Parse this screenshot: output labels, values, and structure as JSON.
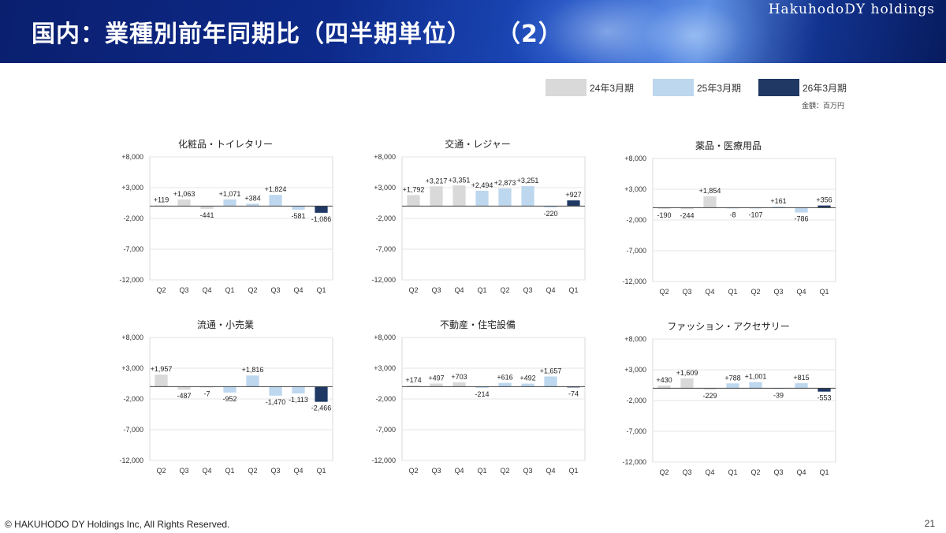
{
  "header": {
    "title": "国内：業種別前年同期比（四半期単位）　　（2）",
    "company": "HakuhodoDY holdings"
  },
  "legend": [
    {
      "label": "24年3月期",
      "color": "#d9d9d9"
    },
    {
      "label": "25年3月期",
      "color": "#bdd7ee"
    },
    {
      "label": "26年3月期",
      "color": "#1f3864"
    }
  ],
  "unit_note": "金額：百万円",
  "footer": {
    "copyright": "© HAKUHODO DY Holdings  Inc, All  Rights  Reserved.",
    "page_number": "21"
  },
  "chart_data": [
    {
      "type": "bar",
      "title": "化粧品・トイレタリー",
      "categories": [
        "Q2",
        "Q3",
        "Q4",
        "Q1",
        "Q2",
        "Q3",
        "Q4",
        "Q1"
      ],
      "values": [
        119,
        1063,
        -441,
        1071,
        384,
        1824,
        -581,
        -1086
      ],
      "value_labels": [
        "+119",
        "+1,063",
        "-441",
        "+1,071",
        "+384",
        "+1,824",
        "-581",
        "-1,086"
      ],
      "fiscal_year_index": [
        0,
        0,
        0,
        1,
        1,
        1,
        1,
        2
      ],
      "yticks": [
        8000,
        3000,
        -2000,
        -7000,
        -12000
      ],
      "ytick_labels": [
        "+8,000",
        "+3,000",
        "-2,000",
        "-7,000",
        "-12,000"
      ],
      "ylim": [
        -12000,
        8000
      ]
    },
    {
      "type": "bar",
      "title": "交通・レジャー",
      "categories": [
        "Q2",
        "Q3",
        "Q4",
        "Q1",
        "Q2",
        "Q3",
        "Q4",
        "Q1"
      ],
      "values": [
        1792,
        3217,
        3351,
        2494,
        2873,
        3251,
        -220,
        927
      ],
      "value_labels": [
        "+1,792",
        "+3,217",
        "+3,351",
        "+2,494",
        "+2,873",
        "+3,251",
        "-220",
        "+927"
      ],
      "fiscal_year_index": [
        0,
        0,
        0,
        1,
        1,
        1,
        1,
        2
      ],
      "yticks": [
        8000,
        3000,
        -2000,
        -7000,
        -12000
      ],
      "ytick_labels": [
        "+8,000",
        "+3,000",
        "-2,000",
        "-7,000",
        "-12,000"
      ],
      "ylim": [
        -12000,
        8000
      ]
    },
    {
      "type": "bar",
      "title": "薬品・医療用品",
      "categories": [
        "Q2",
        "Q3",
        "Q4",
        "Q1",
        "Q2",
        "Q3",
        "Q4",
        "Q1"
      ],
      "values": [
        -190,
        -244,
        1854,
        -8,
        -107,
        161,
        -786,
        356
      ],
      "value_labels": [
        "-190",
        "-244",
        "+1,854",
        "-8",
        "-107",
        "+161",
        "-786",
        "+356"
      ],
      "fiscal_year_index": [
        0,
        0,
        0,
        1,
        1,
        1,
        1,
        2
      ],
      "yticks": [
        8000,
        3000,
        -2000,
        -7000,
        -12000
      ],
      "ytick_labels": [
        "+8,000",
        "+3,000",
        "-2,000",
        "-7,000",
        "-12,000"
      ],
      "ylim": [
        -12000,
        8000
      ]
    },
    {
      "type": "bar",
      "title": "流通・小売業",
      "categories": [
        "Q2",
        "Q3",
        "Q4",
        "Q1",
        "Q2",
        "Q3",
        "Q4",
        "Q1"
      ],
      "values": [
        1957,
        -487,
        -7,
        -952,
        1816,
        -1470,
        -1113,
        -2466
      ],
      "value_labels": [
        "+1,957",
        "-487",
        "-7",
        "-952",
        "+1,816",
        "-1,470",
        "-1,113",
        "-2,466"
      ],
      "fiscal_year_index": [
        0,
        0,
        0,
        1,
        1,
        1,
        1,
        2
      ],
      "yticks": [
        8000,
        3000,
        -2000,
        -7000,
        -12000
      ],
      "ytick_labels": [
        "+8,000",
        "+3,000",
        "-2,000",
        "-7,000",
        "-12,000"
      ],
      "ylim": [
        -12000,
        8000
      ]
    },
    {
      "type": "bar",
      "title": "不動産・住宅設備",
      "categories": [
        "Q2",
        "Q3",
        "Q4",
        "Q1",
        "Q2",
        "Q3",
        "Q4",
        "Q1"
      ],
      "values": [
        174,
        497,
        703,
        -214,
        616,
        492,
        1657,
        -74
      ],
      "value_labels": [
        "+174",
        "+497",
        "+703",
        "-214",
        "+616",
        "+492",
        "+1,657",
        "-74"
      ],
      "fiscal_year_index": [
        0,
        0,
        0,
        1,
        1,
        1,
        1,
        2
      ],
      "yticks": [
        8000,
        3000,
        -2000,
        -7000,
        -12000
      ],
      "ytick_labels": [
        "+8,000",
        "+3,000",
        "-2,000",
        "-7,000",
        "-12,000"
      ],
      "ylim": [
        -12000,
        8000
      ]
    },
    {
      "type": "bar",
      "title": "ファッション・アクセサリー",
      "categories": [
        "Q2",
        "Q3",
        "Q4",
        "Q1",
        "Q2",
        "Q3",
        "Q4",
        "Q1"
      ],
      "values": [
        430,
        1609,
        -229,
        788,
        1001,
        -39,
        815,
        -553
      ],
      "value_labels": [
        "+430",
        "+1,609",
        "-229",
        "+788",
        "+1,001",
        "-39",
        "+815",
        "-553"
      ],
      "fiscal_year_index": [
        0,
        0,
        0,
        1,
        1,
        1,
        1,
        2
      ],
      "yticks": [
        8000,
        3000,
        -2000,
        -7000,
        -12000
      ],
      "ytick_labels": [
        "+8,000",
        "+3,000",
        "-2,000",
        "-7,000",
        "-12,000"
      ],
      "ylim": [
        -12000,
        8000
      ]
    }
  ]
}
